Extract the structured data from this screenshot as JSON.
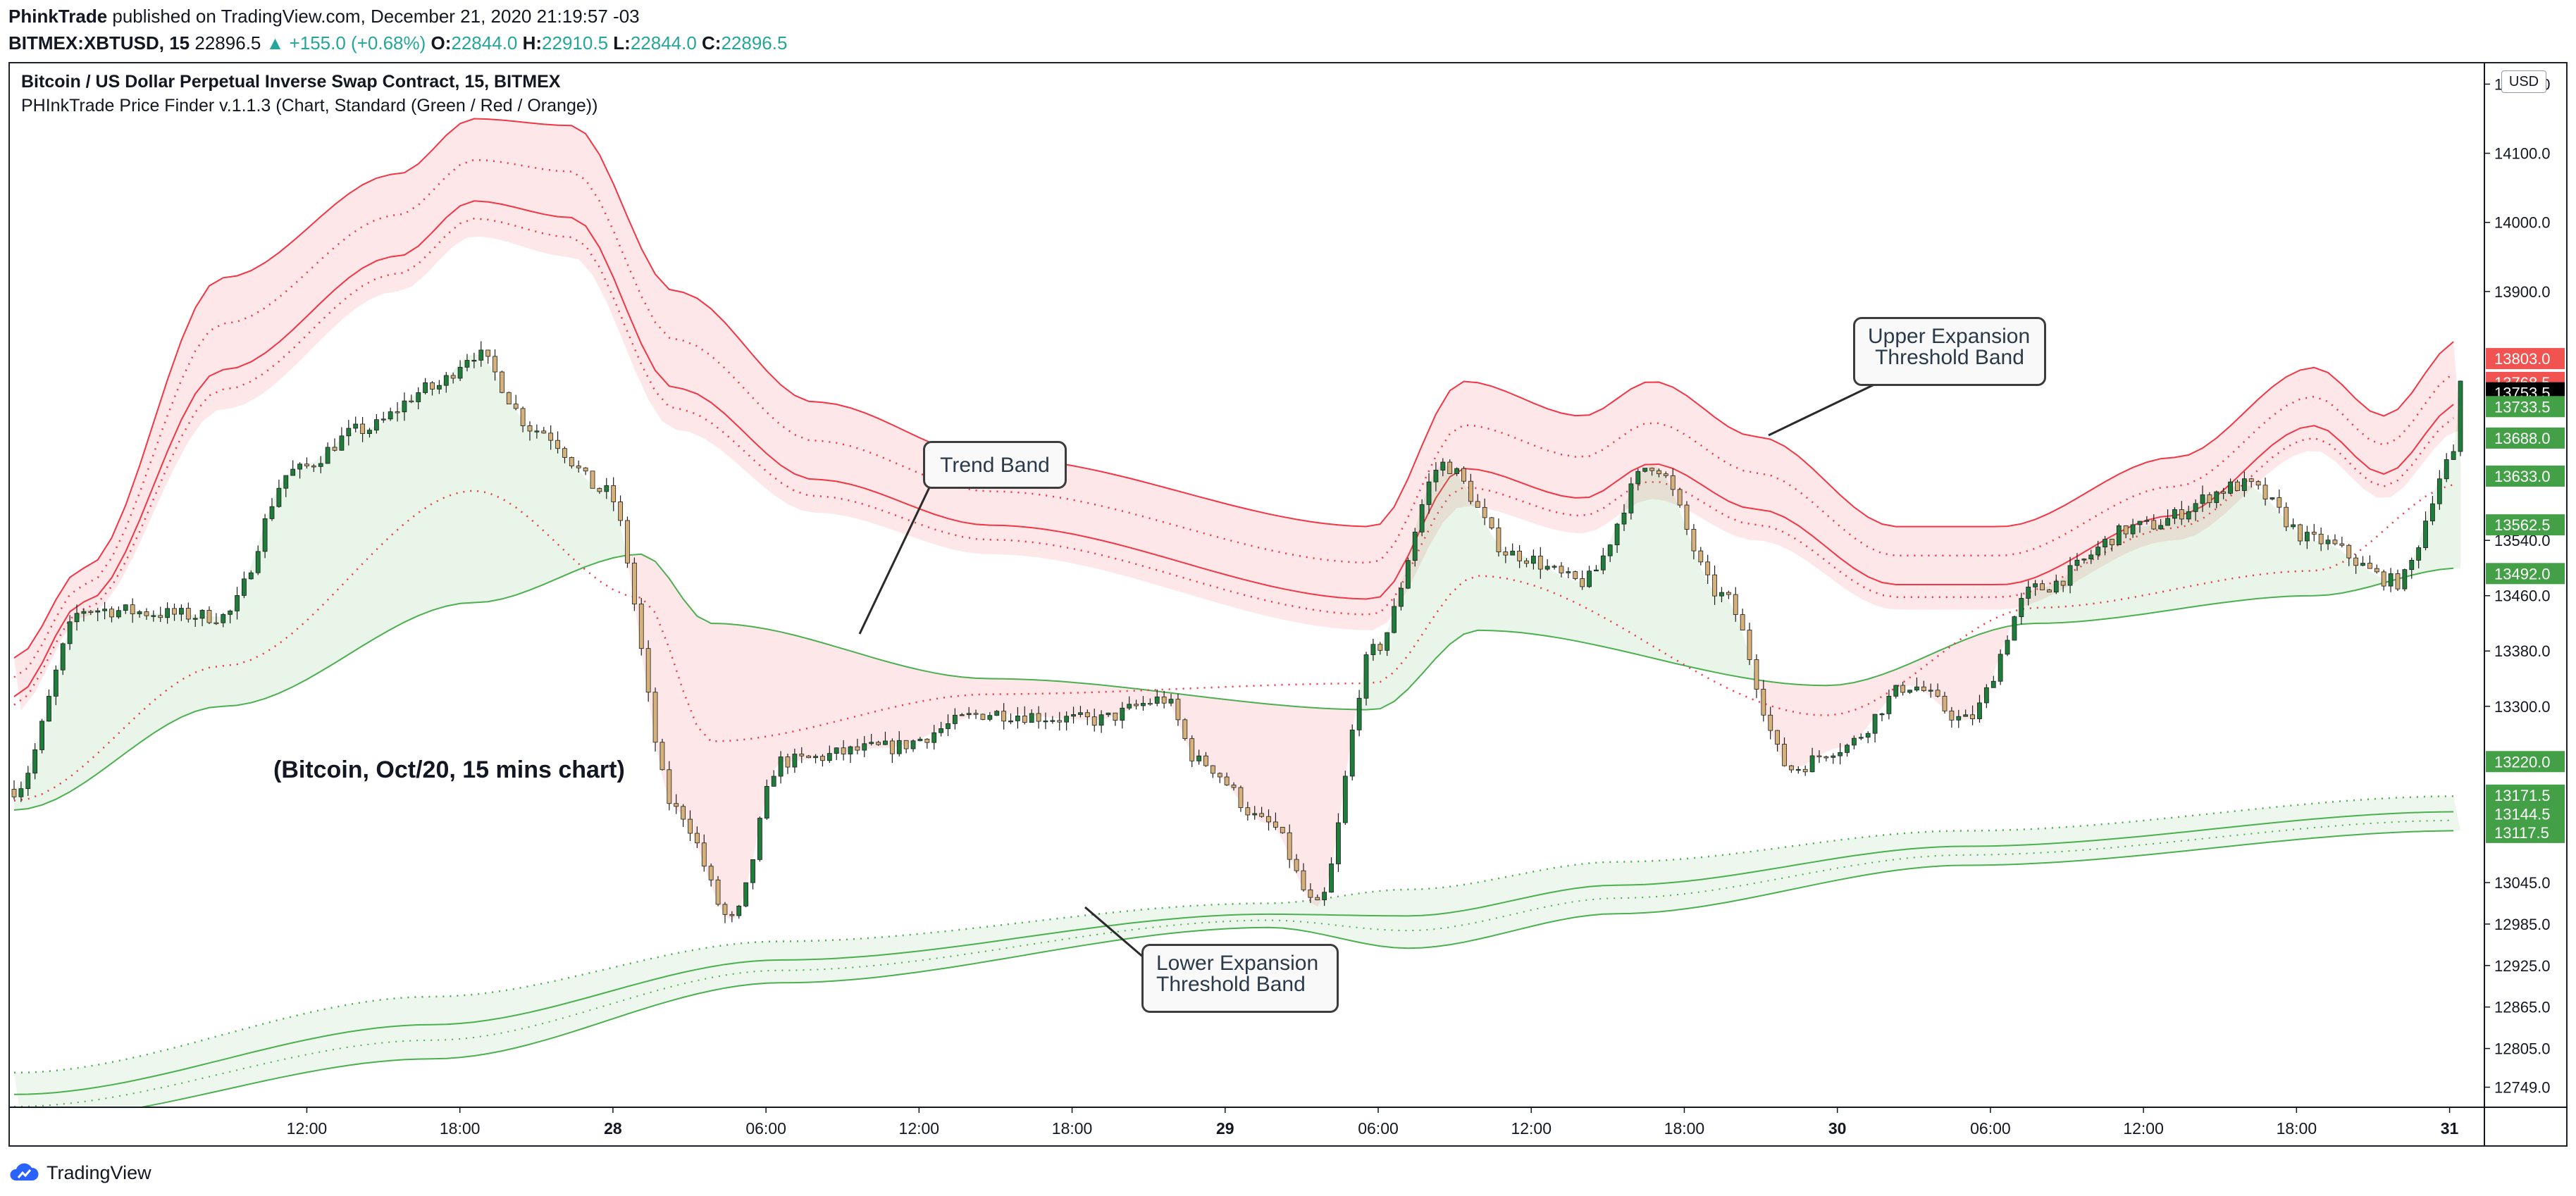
{
  "header": {
    "author": "PhinkTrade",
    "published_text": " published on TradingView.com, December 21, 2020 21:19:57 -03",
    "symbol": "BITMEX:XBTUSD, 15",
    "last": "22896.5",
    "change": "▲ +155.0 (+0.68%)",
    "o_label": "O:",
    "o": "22844.0",
    "h_label": "H:",
    "h": "22910.5",
    "l_label": "L:",
    "l": "22844.0",
    "c_label": "C:",
    "c": "22896.5"
  },
  "chart_header": {
    "title": "Bitcoin / US Dollar Perpetual Inverse Swap Contract, 15, BITMEX",
    "subtitle": "PHInkTrade Price Finder v.1.1.3 (Chart, Standard (Green / Red / Orange))",
    "currency": "USD"
  },
  "annotations": {
    "trend_band": "Trend Band",
    "upper_line1": "Upper Expansion",
    "upper_line2": "Threshold Band",
    "lower_line1": "Lower Expansion",
    "lower_line2": "Threshold Band",
    "note": "(Bitcoin, Oct/20, 15 mins chart)"
  },
  "footer": {
    "brand": "TradingView"
  },
  "colors": {
    "up": "#26a69a",
    "up_candle": "#1e7d3a",
    "down_candle": "#d6b27a",
    "band_red": "#f23645",
    "band_green": "#4caf50",
    "axis": "#131722"
  },
  "chart_data": {
    "type": "candlestick",
    "ylim": [
      12720,
      14230
    ],
    "y_ticks": [
      "14200.0",
      "14100.0",
      "14000.0",
      "13900.0",
      "13540.0",
      "13460.0",
      "13380.0",
      "13300.0",
      "13045.0",
      "12985.0",
      "12925.0",
      "12865.0",
      "12805.0",
      "12749.0"
    ],
    "x_ticks": [
      "12:00",
      "18:00",
      "28",
      "06:00",
      "12:00",
      "18:00",
      "29",
      "06:00",
      "12:00",
      "18:00",
      "30",
      "06:00",
      "12:00",
      "18:00",
      "31"
    ],
    "price_labels": [
      {
        "text": "13803.0",
        "bg": "#f05350",
        "fg": "#ffffff"
      },
      {
        "text": "13768.5",
        "bg": "#f05350",
        "fg": "#ffffff"
      },
      {
        "text": "13753.5",
        "bg": "#000000",
        "fg": "#ffffff"
      },
      {
        "text": "13733.5",
        "bg": "#43a047",
        "fg": "#ffffff"
      },
      {
        "text": "13688.0",
        "bg": "#43a047",
        "fg": "#ffffff"
      },
      {
        "text": "13633.0",
        "bg": "#43a047",
        "fg": "#ffffff"
      },
      {
        "text": "13562.5",
        "bg": "#43a047",
        "fg": "#ffffff"
      },
      {
        "text": "13492.0",
        "bg": "#43a047",
        "fg": "#ffffff"
      },
      {
        "text": "13220.0",
        "bg": "#43a047",
        "fg": "#ffffff"
      },
      {
        "text": "13171.5",
        "bg": "#43a047",
        "fg": "#ffffff"
      },
      {
        "text": "13144.5",
        "bg": "#43a047",
        "fg": "#ffffff"
      },
      {
        "text": "13117.5",
        "bg": "#43a047",
        "fg": "#ffffff"
      }
    ],
    "close_anchors": [
      [
        0,
        13180
      ],
      [
        10,
        13440
      ],
      [
        30,
        13430
      ],
      [
        40,
        13640
      ],
      [
        50,
        13700
      ],
      [
        60,
        13760
      ],
      [
        66,
        13810
      ],
      [
        75,
        13700
      ],
      [
        85,
        13610
      ],
      [
        95,
        13150
      ],
      [
        103,
        12990
      ],
      [
        110,
        13220
      ],
      [
        125,
        13240
      ],
      [
        140,
        13290
      ],
      [
        155,
        13280
      ],
      [
        165,
        13310
      ],
      [
        170,
        13220
      ],
      [
        180,
        13130
      ],
      [
        187,
        13010
      ],
      [
        195,
        13380
      ],
      [
        205,
        13650
      ],
      [
        215,
        13520
      ],
      [
        225,
        13480
      ],
      [
        235,
        13650
      ],
      [
        245,
        13460
      ],
      [
        255,
        13210
      ],
      [
        262,
        13240
      ],
      [
        272,
        13330
      ],
      [
        280,
        13280
      ],
      [
        290,
        13470
      ],
      [
        305,
        13560
      ],
      [
        320,
        13620
      ],
      [
        330,
        13540
      ],
      [
        342,
        13480
      ],
      [
        350,
        13660
      ],
      [
        351,
        13770
      ]
    ],
    "trend_band": {
      "upper": [
        [
          0,
          13290
        ],
        [
          30,
          13640
        ],
        [
          66,
          13720
        ],
        [
          90,
          13500
        ],
        [
          100,
          13440
        ],
        [
          140,
          13340
        ],
        [
          195,
          13295
        ],
        [
          210,
          13410
        ],
        [
          260,
          13330
        ],
        [
          290,
          13420
        ],
        [
          330,
          13460
        ],
        [
          351,
          13500
        ]
      ],
      "lower": [
        [
          0,
          13150
        ],
        [
          30,
          13300
        ],
        [
          66,
          13450
        ],
        [
          90,
          13520
        ],
        [
          100,
          13420
        ],
        [
          140,
          13340
        ],
        [
          195,
          13295
        ],
        [
          210,
          13410
        ],
        [
          260,
          13330
        ],
        [
          290,
          13420
        ],
        [
          330,
          13460
        ],
        [
          351,
          13500
        ]
      ]
    },
    "upper_expansion_band": {
      "upper": [
        [
          0,
          13370
        ],
        [
          10,
          13500
        ],
        [
          30,
          13920
        ],
        [
          55,
          14070
        ],
        [
          66,
          14150
        ],
        [
          80,
          14140
        ],
        [
          95,
          13900
        ],
        [
          115,
          13740
        ],
        [
          140,
          13660
        ],
        [
          195,
          13560
        ],
        [
          208,
          13770
        ],
        [
          225,
          13720
        ],
        [
          235,
          13770
        ],
        [
          250,
          13690
        ],
        [
          270,
          13560
        ],
        [
          285,
          13560
        ],
        [
          310,
          13660
        ],
        [
          330,
          13790
        ],
        [
          340,
          13720
        ],
        [
          351,
          13830
        ]
      ],
      "lower": [
        [
          0,
          13290
        ],
        [
          10,
          13430
        ],
        [
          30,
          13730
        ],
        [
          55,
          13900
        ],
        [
          66,
          13980
        ],
        [
          80,
          13950
        ],
        [
          95,
          13700
        ],
        [
          115,
          13580
        ],
        [
          140,
          13520
        ],
        [
          195,
          13410
        ],
        [
          208,
          13590
        ],
        [
          225,
          13550
        ],
        [
          235,
          13600
        ],
        [
          250,
          13540
        ],
        [
          270,
          13440
        ],
        [
          285,
          13440
        ],
        [
          310,
          13540
        ],
        [
          330,
          13670
        ],
        [
          340,
          13600
        ],
        [
          351,
          13700
        ]
      ]
    },
    "lower_expansion_band": {
      "upper": [
        [
          0,
          12770
        ],
        [
          60,
          12880
        ],
        [
          110,
          12960
        ],
        [
          180,
          13015
        ],
        [
          200,
          13035
        ],
        [
          230,
          13075
        ],
        [
          280,
          13120
        ],
        [
          351,
          13170
        ]
      ],
      "lower": [
        [
          0,
          12700
        ],
        [
          60,
          12790
        ],
        [
          110,
          12900
        ],
        [
          180,
          12980
        ],
        [
          200,
          12950
        ],
        [
          230,
          13000
        ],
        [
          280,
          13070
        ],
        [
          351,
          13120
        ]
      ]
    }
  }
}
